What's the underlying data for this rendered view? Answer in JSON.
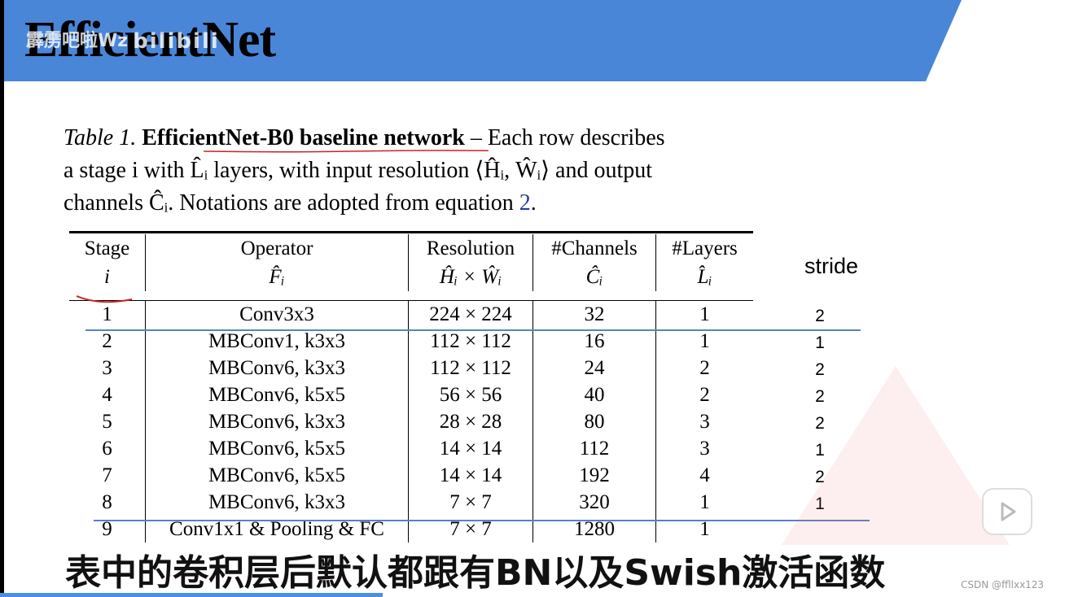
{
  "slide": {
    "title": "EfficientNet",
    "watermark": "霹雳吧啦Wz",
    "watermark_logo": "bilibili",
    "banner_color": "#4a86d8"
  },
  "caption": {
    "label": "Table 1.",
    "bold": "EfficientNet-B0 baseline network",
    "line1_rest": " – Each row describes",
    "line2": "a stage i with L̂ᵢ layers, with input resolution ⟨Ĥᵢ, Ŵᵢ⟩ and output",
    "line3_pre": "channels Ĉᵢ. Notations are adopted from equation ",
    "line3_ref": "2",
    "line3_post": "."
  },
  "table": {
    "headers": [
      {
        "top": "Stage",
        "bottom": "i"
      },
      {
        "top": "Operator",
        "bottom": "F̂ᵢ"
      },
      {
        "top": "Resolution",
        "bottom": "Ĥᵢ × Ŵᵢ"
      },
      {
        "top": "#Channels",
        "bottom": "Ĉᵢ"
      },
      {
        "top": "#Layers",
        "bottom": "L̂ᵢ"
      }
    ],
    "rows": [
      [
        "1",
        "Conv3x3",
        "224 × 224",
        "32",
        "1"
      ],
      [
        "2",
        "MBConv1, k3x3",
        "112 × 112",
        "16",
        "1"
      ],
      [
        "3",
        "MBConv6, k3x3",
        "112 × 112",
        "24",
        "2"
      ],
      [
        "4",
        "MBConv6, k5x5",
        "56 × 56",
        "40",
        "2"
      ],
      [
        "5",
        "MBConv6, k3x3",
        "28 × 28",
        "80",
        "3"
      ],
      [
        "6",
        "MBConv6, k5x5",
        "14 × 14",
        "112",
        "3"
      ],
      [
        "7",
        "MBConv6, k5x5",
        "14 × 14",
        "192",
        "4"
      ],
      [
        "8",
        "MBConv6, k3x3",
        "7 × 7",
        "320",
        "1"
      ],
      [
        "9",
        "Conv1x1 & Pooling & FC",
        "7 × 7",
        "1280",
        "1"
      ]
    ]
  },
  "stride": {
    "label": "stride",
    "values": [
      "2",
      "1",
      "2",
      "2",
      "2",
      "1",
      "2",
      "1"
    ]
  },
  "subtitle": "表中的卷积层后默认都跟有BN以及Swish激活函数",
  "csdn": "CSDN @ffllxx123",
  "icons": [
    "play-icon"
  ]
}
